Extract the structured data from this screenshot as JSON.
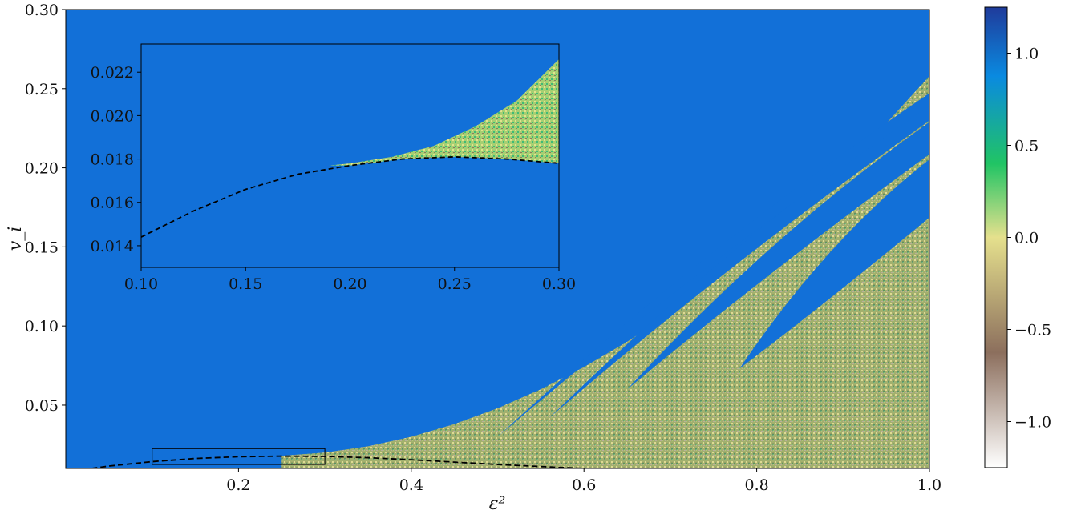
{
  "chart_data": {
    "type": "heatmap",
    "title": "",
    "xlabel": "ε²",
    "ylabel": "v_i",
    "xlim": [
      0.0,
      1.0
    ],
    "ylim": [
      0.01,
      0.3
    ],
    "x_ticks": [
      0.2,
      0.4,
      0.6,
      0.8,
      1.0
    ],
    "x_tick_labels": [
      "0.2",
      "0.4",
      "0.6",
      "0.8",
      "1.0"
    ],
    "y_ticks": [
      0.05,
      0.1,
      0.15,
      0.2,
      0.25,
      0.3
    ],
    "y_tick_labels": [
      "0.05",
      "0.10",
      "0.15",
      "0.20",
      "0.25",
      "0.30"
    ],
    "colorbar": {
      "range": [
        -1.25,
        1.25
      ],
      "ticks": [
        -1.0,
        -0.5,
        0.0,
        0.5,
        1.0
      ],
      "tick_labels": [
        "−1.0",
        "−0.5",
        "0.0",
        "0.5",
        "1.0"
      ],
      "colormap": "terrain_r",
      "stops": [
        "#ffffff",
        "#8c6f5d",
        "#e5e08d",
        "#21c464",
        "#0a8ae0",
        "#1f3b9b"
      ]
    },
    "background_color": "#1270d8",
    "critical_curve": {
      "style": "dashed",
      "color": "#000000",
      "x": [
        0.03,
        0.05,
        0.1,
        0.15,
        0.2,
        0.25,
        0.3,
        0.35,
        0.4,
        0.45,
        0.5,
        0.55,
        0.6
      ],
      "y": [
        0.01,
        0.0115,
        0.0143,
        0.0163,
        0.0174,
        0.0178,
        0.0176,
        0.0168,
        0.0155,
        0.014,
        0.0125,
        0.0112,
        0.01
      ]
    },
    "chaotic_region_upper_boundary": {
      "x": [
        0.25,
        0.3,
        0.35,
        0.4,
        0.45,
        0.5,
        0.55,
        0.6,
        0.65,
        0.7,
        0.75,
        0.8,
        0.85,
        0.9,
        0.95,
        1.0
      ],
      "y": [
        0.018,
        0.02,
        0.024,
        0.03,
        0.038,
        0.048,
        0.06,
        0.074,
        0.09,
        0.108,
        0.128,
        0.15,
        0.174,
        0.2,
        0.228,
        0.258
      ]
    },
    "windows": [
      {
        "tip": [
          0.78,
          0.073
        ],
        "end": [
          1.0,
          0.195
        ],
        "width": 0.018
      },
      {
        "tip": [
          0.65,
          0.06
        ],
        "end": [
          1.0,
          0.226
        ],
        "width": 0.01
      },
      {
        "tip": [
          0.56,
          0.042
        ],
        "end": [
          1.0,
          0.243
        ],
        "width": 0.006
      },
      {
        "tip": [
          0.5,
          0.03
        ],
        "end": [
          1.0,
          0.25
        ],
        "width": 0.004
      }
    ],
    "zoom_box": {
      "x": [
        0.1,
        0.3
      ],
      "y": [
        0.0125,
        0.0225
      ]
    },
    "inset": {
      "xlim": [
        0.1,
        0.3
      ],
      "ylim": [
        0.013,
        0.0233
      ],
      "x_ticks": [
        0.1,
        0.15,
        0.2,
        0.25,
        0.3
      ],
      "x_tick_labels": [
        "0.10",
        "0.15",
        "0.20",
        "0.25",
        "0.30"
      ],
      "y_ticks": [
        0.014,
        0.016,
        0.018,
        0.02,
        0.022
      ],
      "y_tick_labels": [
        "0.014",
        "0.016",
        "0.018",
        "0.020",
        "0.022"
      ],
      "critical_curve": {
        "x": [
          0.1,
          0.125,
          0.15,
          0.175,
          0.2,
          0.225,
          0.25,
          0.275,
          0.3
        ],
        "y": [
          0.0144,
          0.0156,
          0.0166,
          0.0173,
          0.0177,
          0.018,
          0.0181,
          0.018,
          0.0178
        ]
      },
      "chaotic_upper_boundary": {
        "x": [
          0.19,
          0.2,
          0.22,
          0.24,
          0.26,
          0.28,
          0.3
        ],
        "y": [
          0.0177,
          0.0178,
          0.0181,
          0.0186,
          0.0195,
          0.0207,
          0.0226
        ]
      }
    }
  }
}
